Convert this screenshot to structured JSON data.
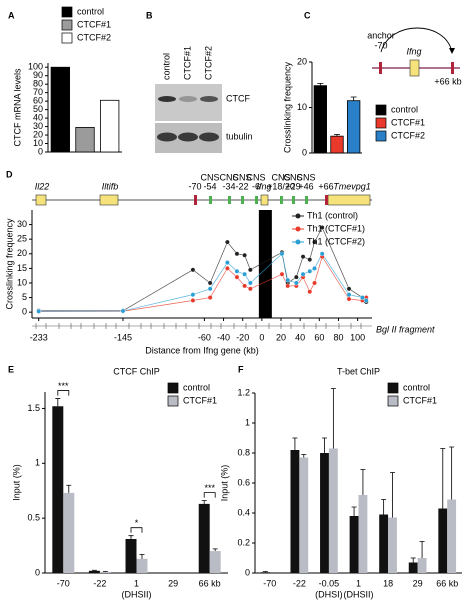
{
  "chart_data": [
    {
      "panel": "A",
      "type": "bar",
      "ylabel": "CTCF mRNA levels",
      "series": [
        {
          "name": "control",
          "color": "#000000",
          "values": [
            100
          ]
        },
        {
          "name": "CTCF#1",
          "color": "#9b9b9b",
          "values": [
            29
          ]
        },
        {
          "name": "CTCF#2",
          "color": "#ffffff",
          "values": [
            61
          ]
        }
      ],
      "ylim": [
        0,
        105
      ],
      "yticks": [
        0,
        10,
        20,
        30,
        40,
        50,
        60,
        70,
        80,
        90,
        100
      ]
    },
    {
      "panel": "B",
      "type": "blot",
      "lanes": [
        "control",
        "CTCF#1",
        "CTCF#2"
      ],
      "bands": [
        "CTCF",
        "tubulin"
      ]
    },
    {
      "panel": "C",
      "type": "bar",
      "ylabel": "Crosslinking frequency",
      "series": [
        {
          "name": "control",
          "color": "#000000",
          "values": [
            14.8
          ],
          "errors": [
            0.5
          ]
        },
        {
          "name": "CTCF#1",
          "color": "#e8392b",
          "values": [
            3.7
          ],
          "errors": [
            0.4
          ]
        },
        {
          "name": "CTCF#2",
          "color": "#2a7fc9",
          "values": [
            11.5
          ],
          "errors": [
            0.8
          ]
        }
      ],
      "ylim": [
        0,
        20
      ],
      "yticks": [
        0,
        10,
        20
      ],
      "diagram": {
        "anchor": "anchor",
        "left": "-70",
        "gene": "Ifng",
        "right": "+66 kb"
      }
    },
    {
      "panel": "D",
      "type": "line",
      "ylabel": "Crosslinking frequency",
      "xlabel": "Distance from Ifng gene (kb)",
      "fragment_label": "Bgl II fragment",
      "annotations": [
        {
          "top": "Il22"
        },
        {
          "top": "Iltifb"
        },
        {
          "top": "-70"
        },
        {
          "top": "CNS",
          "bottom": "-54"
        },
        {
          "top": "CNS",
          "bottom": "-34"
        },
        {
          "top": "CNS",
          "bottom": "-22"
        },
        {
          "top": "CNS",
          "bottom": "-6"
        },
        {
          "top": "Ifng"
        },
        {
          "top": "CNS",
          "bottom": "+18/20"
        },
        {
          "top": "CNS",
          "bottom": "+29"
        },
        {
          "top": "CNS",
          "bottom": "+46"
        },
        {
          "top": "+66"
        },
        {
          "top": "Tmevpg1"
        }
      ],
      "x": [
        -233,
        -145,
        -72,
        -54,
        -36,
        -26,
        -18,
        -12,
        21,
        27,
        36,
        43,
        50,
        55,
        63,
        91,
        105,
        109
      ],
      "series": [
        {
          "name": "Th1 (control)",
          "color": "#222222",
          "values": [
            0.5,
            0.5,
            14.5,
            10,
            24,
            20,
            19.5,
            14.5,
            20.5,
            10,
            12,
            19,
            18,
            24,
            29,
            8,
            5,
            3.5
          ]
        },
        {
          "name": "Th1 (CTCF#1)",
          "color": "#e8392b",
          "values": [
            0.2,
            0.3,
            4,
            5,
            15,
            12,
            9,
            8,
            13,
            9,
            9,
            12,
            7,
            10,
            19,
            4.5,
            4,
            5
          ]
        },
        {
          "name": "Th1 (CTCF#2)",
          "color": "#2a9fd6",
          "values": [
            0.3,
            0.4,
            6,
            8,
            17,
            14,
            13,
            10,
            20,
            11,
            10,
            13,
            14,
            15,
            20,
            6,
            5,
            4
          ]
        }
      ],
      "xlim": [
        -240,
        115
      ],
      "xticks": [
        -233,
        -145,
        -60,
        -40,
        -20,
        0,
        20,
        40,
        60,
        80,
        100
      ],
      "ylim": [
        -2,
        35
      ],
      "yticks": [
        0,
        5,
        10,
        15,
        20,
        25,
        30
      ]
    },
    {
      "panel": "E",
      "type": "grouped_bar",
      "title": "CTCF ChIP",
      "ylabel": "Input (%)",
      "categories": [
        "-70",
        "-22",
        "1",
        "29",
        "66 kb"
      ],
      "sublabels": [
        null,
        null,
        "(DHSII)",
        null,
        null
      ],
      "series": [
        {
          "name": "control",
          "color": "#111111",
          "values": [
            1.52,
            0.02,
            0.31,
            0.0,
            0.63
          ],
          "errors": [
            0.07,
            0.005,
            0.03,
            0,
            0.03
          ]
        },
        {
          "name": "CTCF#1",
          "color": "#b9bcc4",
          "values": [
            0.73,
            0.01,
            0.13,
            0.0,
            0.2
          ],
          "errors": [
            0.07,
            0.005,
            0.04,
            0,
            0.02
          ]
        }
      ],
      "significance": [
        "***",
        null,
        "*",
        null,
        "***"
      ],
      "ylim": [
        0,
        1.65
      ],
      "yticks": [
        0,
        0.5,
        1,
        1.5
      ]
    },
    {
      "panel": "F",
      "type": "grouped_bar",
      "title": "T-bet ChIP",
      "ylabel": "Input (%)",
      "categories": [
        "-70",
        "-22",
        "-0.05",
        "1",
        "18",
        "29",
        "66 kb"
      ],
      "sublabels": [
        null,
        null,
        "(DHSI)",
        "(DHSII)",
        null,
        null,
        null
      ],
      "series": [
        {
          "name": "control",
          "color": "#111111",
          "values": [
            0.005,
            0.82,
            0.8,
            0.38,
            0.39,
            0.07,
            0.43
          ],
          "errors": [
            0.005,
            0.08,
            0.1,
            0.06,
            0.1,
            0.03,
            0.4
          ]
        },
        {
          "name": "CTCF#1",
          "color": "#b9bcc4",
          "values": [
            0,
            0.77,
            0.83,
            0.52,
            0.37,
            0.1,
            0.49
          ],
          "errors": [
            0,
            0.02,
            0.4,
            0.17,
            0.3,
            0.11,
            0.35
          ]
        }
      ],
      "ylim": [
        0,
        1.2
      ],
      "yticks": [
        0,
        0.2,
        0.4,
        0.6,
        0.8,
        1,
        1.2
      ]
    }
  ]
}
